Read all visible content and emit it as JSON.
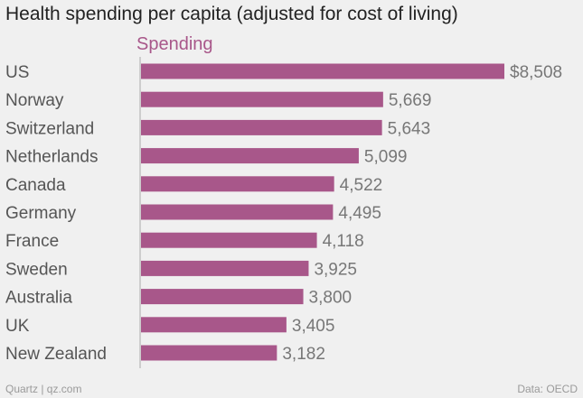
{
  "chart_data": {
    "type": "bar",
    "orientation": "horizontal",
    "title": "Health spending per capita (adjusted for cost of living)",
    "series_name": "Spending",
    "categories": [
      "US",
      "Norway",
      "Switzerland",
      "Netherlands",
      "Canada",
      "Germany",
      "France",
      "Sweden",
      "Australia",
      "UK",
      "New Zealand"
    ],
    "values": [
      8508,
      5669,
      5643,
      5099,
      4522,
      4495,
      4118,
      3925,
      3800,
      3405,
      3182
    ],
    "value_labels": [
      "$8,508",
      "5,669",
      "5,643",
      "5,099",
      "4,522",
      "4,495",
      "4,118",
      "3,925",
      "3,800",
      "3,405",
      "3,182"
    ],
    "xlim": [
      0,
      8508
    ],
    "grid": false
  },
  "colors": {
    "bar": "#a8578a",
    "category_text": "#555555",
    "value_text": "#777777",
    "axis": "#aaaaaa"
  },
  "footer": {
    "source_left": "Quartz | qz.com",
    "source_right": "Data: OECD"
  }
}
